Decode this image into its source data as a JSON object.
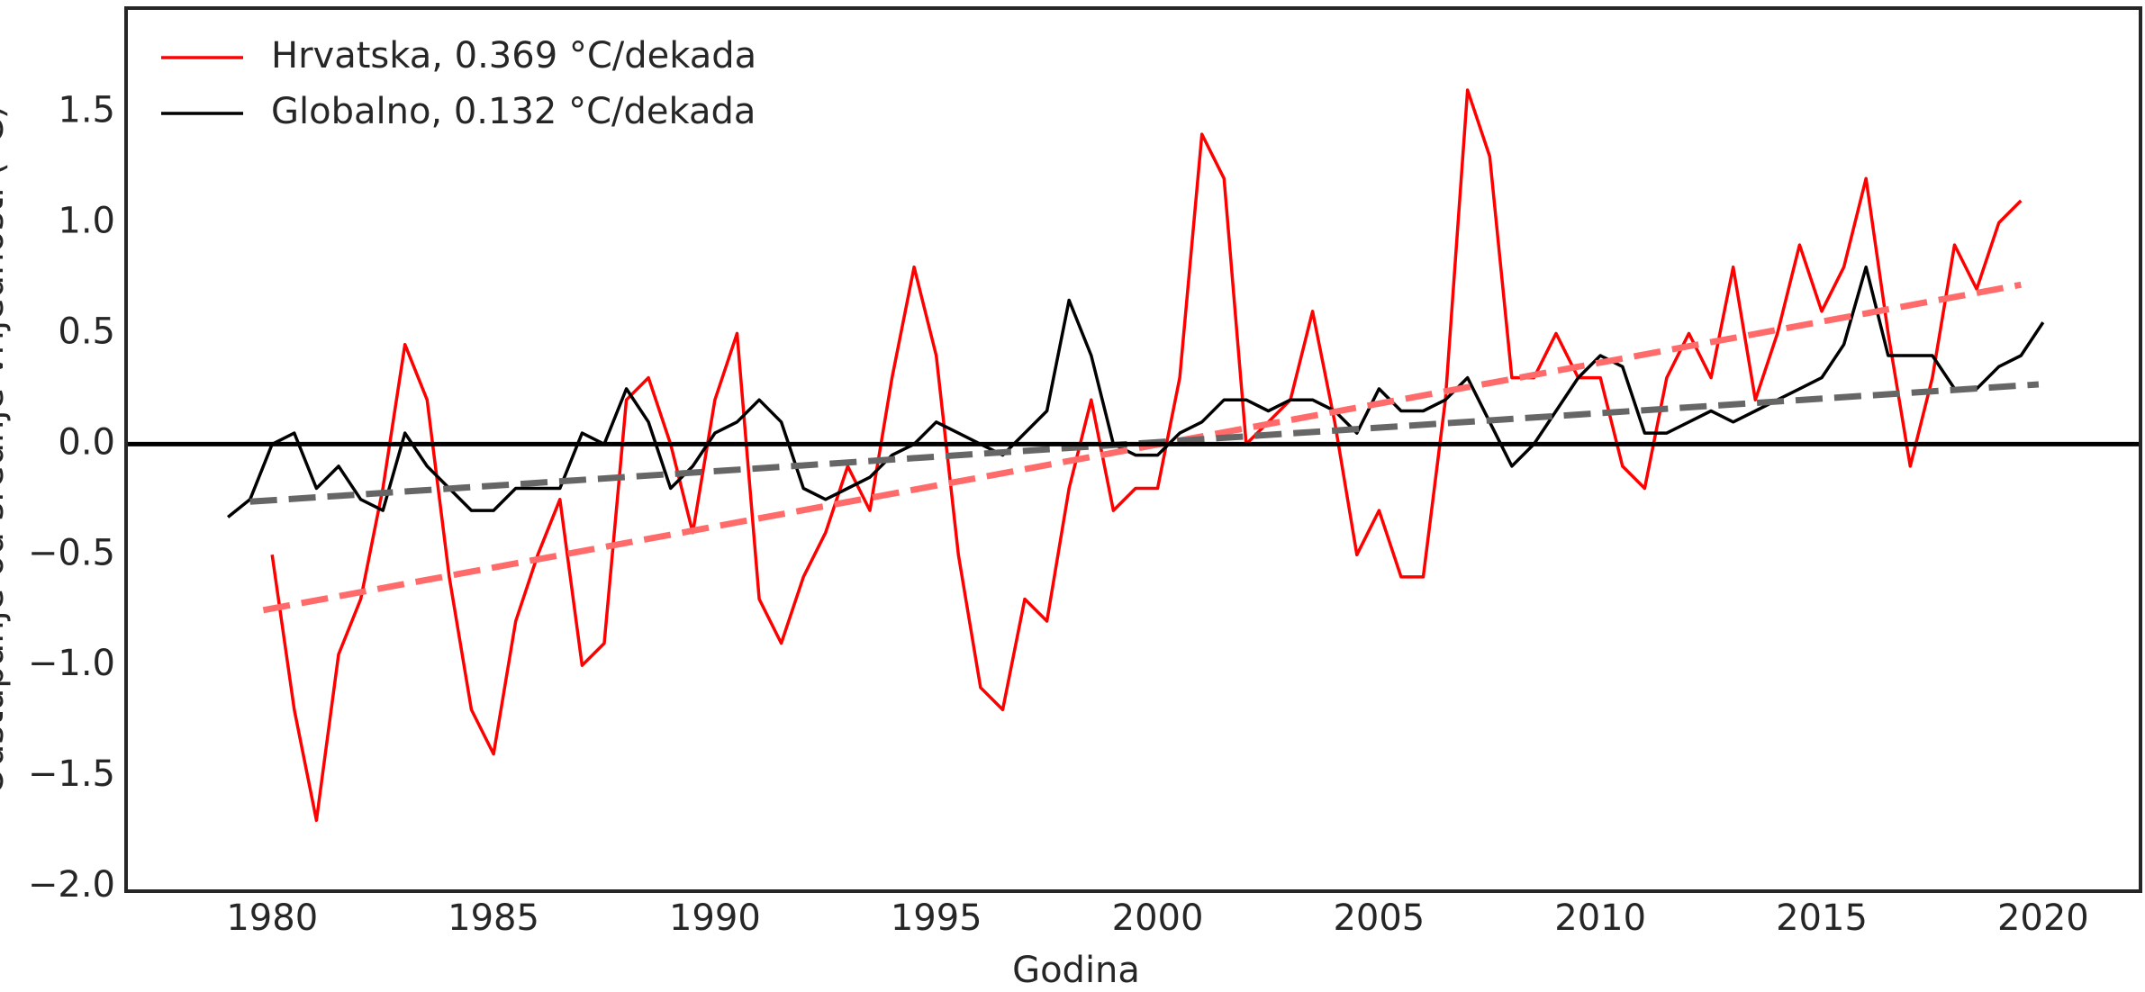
{
  "chart_data": {
    "type": "line",
    "x_label": "Godina",
    "y_label": "Odstupanje od srednje vrijednosti (°C)",
    "xlim": [
      1976.7,
      2022.2
    ],
    "ylim": [
      -2.02,
      1.97
    ],
    "xticks": [
      1980,
      1985,
      1990,
      1995,
      2000,
      2005,
      2010,
      2015,
      2020
    ],
    "yticks": [
      {
        "value": -2.0,
        "label": "−2.0"
      },
      {
        "value": -1.5,
        "label": "−1.5"
      },
      {
        "value": -1.0,
        "label": "−1.0"
      },
      {
        "value": -0.5,
        "label": "−0.5"
      },
      {
        "value": 0.0,
        "label": "0.0"
      },
      {
        "value": 0.5,
        "label": "0.5"
      },
      {
        "value": 1.0,
        "label": "1.0"
      },
      {
        "value": 1.5,
        "label": "1.5"
      }
    ],
    "hline": 0,
    "legend": "upper left",
    "grid": false,
    "x": [
      1979.0,
      1979.5,
      1980.0,
      1980.5,
      1981.0,
      1981.5,
      1982.0,
      1982.5,
      1983.0,
      1983.5,
      1984.0,
      1984.5,
      1985.0,
      1985.5,
      1986.0,
      1986.5,
      1987.0,
      1987.5,
      1988.0,
      1988.5,
      1989.0,
      1989.5,
      1990.0,
      1990.5,
      1991.0,
      1991.5,
      1992.0,
      1992.5,
      1993.0,
      1993.5,
      1994.0,
      1994.5,
      1995.0,
      1995.5,
      1996.0,
      1996.5,
      1997.0,
      1997.5,
      1998.0,
      1998.5,
      1999.0,
      1999.5,
      2000.0,
      2000.5,
      2001.0,
      2001.5,
      2002.0,
      2002.5,
      2003.0,
      2003.5,
      2004.0,
      2004.5,
      2005.0,
      2005.5,
      2006.0,
      2006.5,
      2007.0,
      2007.5,
      2008.0,
      2008.5,
      2009.0,
      2009.5,
      2010.0,
      2010.5,
      2011.0,
      2011.5,
      2012.0,
      2012.5,
      2013.0,
      2013.5,
      2014.0,
      2014.5,
      2015.0,
      2015.5,
      2016.0,
      2016.5,
      2017.0,
      2017.5,
      2018.0,
      2018.5,
      2019.0,
      2019.5,
      2020.0
    ],
    "series": [
      {
        "name": "Hrvatska, 0.369 °C/dekada",
        "color": "#ff0000",
        "values": [
          null,
          null,
          -0.5,
          -1.2,
          -1.7,
          -0.95,
          -0.7,
          -0.2,
          0.45,
          0.2,
          -0.6,
          -1.2,
          -1.4,
          -0.8,
          -0.5,
          -0.25,
          -1.0,
          -0.9,
          0.2,
          0.3,
          0.0,
          -0.4,
          0.2,
          0.5,
          -0.7,
          -0.9,
          -0.6,
          -0.4,
          -0.1,
          -0.3,
          0.3,
          0.8,
          0.4,
          -0.5,
          -1.1,
          -1.2,
          -0.7,
          -0.8,
          -0.2,
          0.2,
          -0.3,
          -0.2,
          -0.2,
          0.3,
          1.4,
          1.2,
          0.0,
          0.1,
          0.2,
          0.6,
          0.1,
          -0.5,
          -0.3,
          -0.6,
          -0.6,
          0.2,
          1.6,
          1.3,
          0.3,
          0.3,
          0.5,
          0.3,
          0.3,
          -0.1,
          -0.2,
          0.3,
          0.5,
          0.3,
          0.8,
          0.2,
          0.5,
          0.9,
          0.6,
          0.8,
          1.2,
          0.5,
          -0.1,
          0.3,
          0.9,
          0.7,
          1.0,
          1.1,
          null
        ],
        "trend": {
          "color": "#ff6b6b",
          "x": [
            1979.8,
            2019.5
          ],
          "values": [
            -0.75,
            0.72
          ]
        }
      },
      {
        "name": "Globalno, 0.132 °C/dekada",
        "color": "#000000",
        "values": [
          -0.33,
          -0.25,
          0.0,
          0.05,
          -0.2,
          -0.1,
          -0.25,
          -0.3,
          0.05,
          -0.1,
          -0.2,
          -0.3,
          -0.3,
          -0.2,
          -0.2,
          -0.2,
          0.05,
          0.0,
          0.25,
          0.1,
          -0.2,
          -0.1,
          0.05,
          0.1,
          0.2,
          0.1,
          -0.2,
          -0.25,
          -0.2,
          -0.15,
          -0.05,
          0.0,
          0.1,
          0.05,
          0.0,
          -0.05,
          0.05,
          0.15,
          0.65,
          0.4,
          0.0,
          -0.05,
          -0.05,
          0.05,
          0.1,
          0.2,
          0.2,
          0.15,
          0.2,
          0.2,
          0.15,
          0.05,
          0.25,
          0.15,
          0.15,
          0.2,
          0.3,
          0.1,
          -0.1,
          0.0,
          0.15,
          0.3,
          0.4,
          0.35,
          0.05,
          0.05,
          0.1,
          0.15,
          0.1,
          0.15,
          0.2,
          0.25,
          0.3,
          0.45,
          0.8,
          0.4,
          0.4,
          0.4,
          0.25,
          0.25,
          0.35,
          0.4,
          0.55
        ],
        "trend": {
          "color": "#666666",
          "x": [
            1979.5,
            2019.9
          ],
          "values": [
            -0.26,
            0.27
          ]
        }
      }
    ]
  }
}
